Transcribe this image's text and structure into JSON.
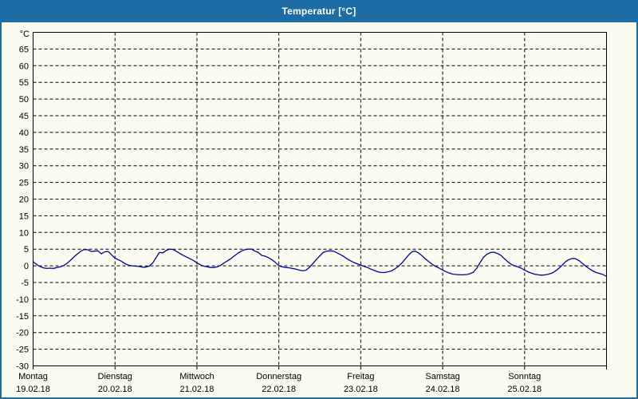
{
  "window": {
    "title": "Temperatur [°C]"
  },
  "colors": {
    "titlebar": "#1d6da4",
    "window_border": "#1d6da4",
    "window_background": "#fbfbf2",
    "title_text": "#ffffff",
    "axis_and_grid": "#000000",
    "label_text": "#000000",
    "series_line": "#0000a0"
  },
  "chart_data": {
    "type": "line",
    "title": "Temperatur [°C]",
    "y_unit_label": "°C",
    "ylim": [
      -30,
      70
    ],
    "ytick_step": 5,
    "ytick_labels": [
      65,
      60,
      55,
      50,
      45,
      40,
      35,
      30,
      25,
      20,
      15,
      10,
      5,
      0,
      -5,
      -10,
      -15,
      -20,
      -25,
      -30
    ],
    "grid": "dashed",
    "legend": "none",
    "x_range_hours": [
      0,
      168
    ],
    "x_days": [
      {
        "weekday": "Montag",
        "date": "19.02.18"
      },
      {
        "weekday": "Dienstag",
        "date": "20.02.18"
      },
      {
        "weekday": "Mittwoch",
        "date": "21.02.18"
      },
      {
        "weekday": "Donnerstag",
        "date": "22.02.18"
      },
      {
        "weekday": "Freitag",
        "date": "23.02.18"
      },
      {
        "weekday": "Samstag",
        "date": "24.02.18"
      },
      {
        "weekday": "Sonntag",
        "date": "25.02.18"
      }
    ],
    "series": [
      {
        "name": "Temperatur",
        "color": "#0000a0",
        "sample_interval_hours": 1,
        "values": [
          1.3,
          0.4,
          -0.2,
          -0.6,
          -0.8,
          -0.7,
          -0.8,
          -0.5,
          -0.3,
          0.1,
          0.8,
          1.7,
          2.7,
          3.6,
          4.4,
          4.9,
          4.8,
          4.3,
          4.4,
          4.5,
          3.6,
          4.2,
          4.3,
          3.3,
          2.3,
          1.8,
          1.3,
          0.6,
          0.2,
          0.0,
          -0.1,
          -0.2,
          -0.4,
          -0.4,
          -0.1,
          0.8,
          2.4,
          4.0,
          3.9,
          4.6,
          5.0,
          4.9,
          4.3,
          3.7,
          3.1,
          2.6,
          2.1,
          1.6,
          0.9,
          0.3,
          -0.1,
          -0.3,
          -0.5,
          -0.5,
          -0.3,
          0.2,
          0.9,
          1.5,
          2.2,
          3.0,
          3.8,
          4.4,
          4.8,
          5.0,
          5.0,
          4.4,
          4.0,
          3.1,
          2.9,
          2.4,
          1.8,
          1.0,
          0.0,
          -0.3,
          -0.5,
          -0.6,
          -0.8,
          -1.0,
          -1.3,
          -1.5,
          -1.3,
          -0.4,
          0.7,
          1.9,
          3.0,
          4.0,
          4.4,
          4.5,
          4.4,
          3.9,
          3.4,
          2.8,
          2.1,
          1.5,
          1.0,
          0.6,
          0.2,
          -0.2,
          -0.5,
          -1.0,
          -1.4,
          -1.8,
          -2.0,
          -2.0,
          -1.8,
          -1.5,
          -0.9,
          -0.2,
          0.8,
          2.0,
          3.2,
          4.2,
          4.4,
          3.8,
          3.0,
          2.0,
          1.2,
          0.4,
          -0.2,
          -0.7,
          -1.3,
          -1.8,
          -2.2,
          -2.5,
          -2.6,
          -2.7,
          -2.7,
          -2.6,
          -2.4,
          -1.9,
          -0.7,
          1.0,
          2.6,
          3.5,
          4.0,
          4.1,
          3.7,
          3.2,
          2.2,
          1.3,
          0.5,
          0.0,
          -0.3,
          -0.7,
          -1.3,
          -1.8,
          -2.2,
          -2.5,
          -2.7,
          -2.8,
          -2.7,
          -2.5,
          -2.2,
          -1.6,
          -0.8,
          0.2,
          1.2,
          1.9,
          2.2,
          2.1,
          1.5,
          0.7,
          -0.2,
          -0.9,
          -1.5,
          -2.0,
          -2.3,
          -2.6,
          -3.2
        ]
      }
    ]
  }
}
